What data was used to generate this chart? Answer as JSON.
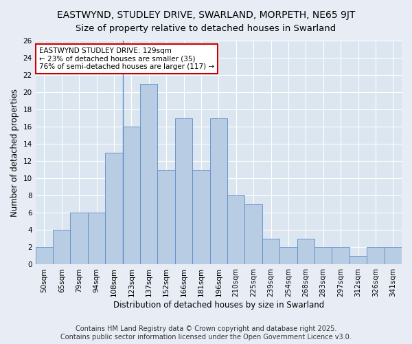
{
  "title": "EASTWYND, STUDLEY DRIVE, SWARLAND, MORPETH, NE65 9JT",
  "subtitle": "Size of property relative to detached houses in Swarland",
  "xlabel": "Distribution of detached houses by size in Swarland",
  "ylabel": "Number of detached properties",
  "categories": [
    "50sqm",
    "65sqm",
    "79sqm",
    "94sqm",
    "108sqm",
    "123sqm",
    "137sqm",
    "152sqm",
    "166sqm",
    "181sqm",
    "196sqm",
    "210sqm",
    "225sqm",
    "239sqm",
    "254sqm",
    "268sqm",
    "283sqm",
    "297sqm",
    "312sqm",
    "326sqm",
    "341sqm"
  ],
  "values": [
    2,
    4,
    6,
    6,
    13,
    16,
    21,
    11,
    17,
    11,
    17,
    8,
    7,
    3,
    2,
    3,
    2,
    2,
    1,
    2,
    2
  ],
  "bar_color": "#b8cce4",
  "bar_edge_color": "#5b8cc8",
  "annotation_title": "EASTWYND STUDLEY DRIVE: 129sqm",
  "annotation_line1": "← 23% of detached houses are smaller (35)",
  "annotation_line2": "76% of semi-detached houses are larger (117) →",
  "annotation_box_facecolor": "#ffffff",
  "annotation_box_edgecolor": "#cc0000",
  "vline_x_index": 5,
  "ylim": [
    0,
    26
  ],
  "yticks": [
    0,
    2,
    4,
    6,
    8,
    10,
    12,
    14,
    16,
    18,
    20,
    22,
    24,
    26
  ],
  "bg_color": "#e8edf5",
  "plot_bg_color": "#dce6f0",
  "grid_color": "#ffffff",
  "footer_line1": "Contains HM Land Registry data © Crown copyright and database right 2025.",
  "footer_line2": "Contains public sector information licensed under the Open Government Licence v3.0.",
  "title_fontsize": 10,
  "xlabel_fontsize": 8.5,
  "ylabel_fontsize": 8.5,
  "tick_fontsize": 7.5,
  "annotation_fontsize": 7.5,
  "footer_fontsize": 7
}
